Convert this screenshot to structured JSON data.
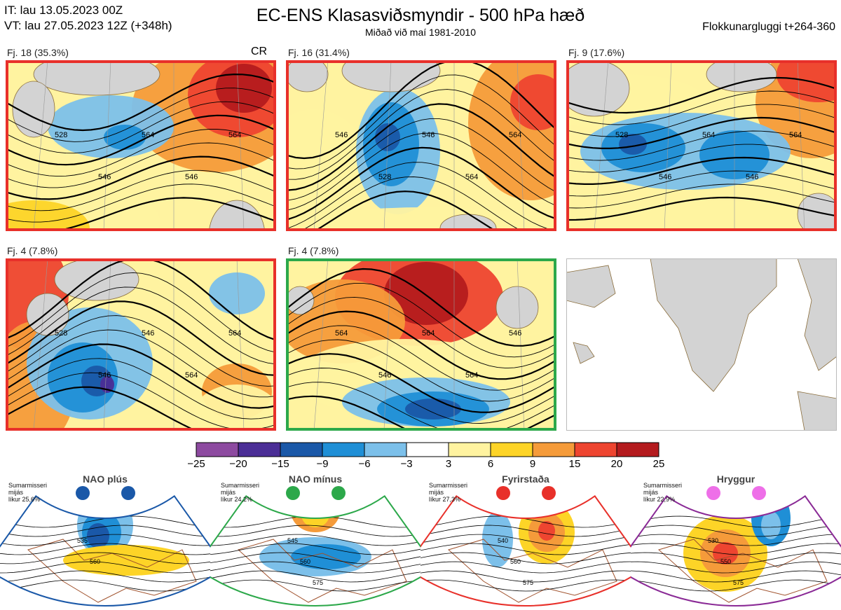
{
  "header": {
    "it_line": "IT: lau 13.05.2023 00Z",
    "vt_line": "VT: lau 27.05.2023 12Z  (+348h)",
    "title": "EC-ENS Klasasviðsmyndir - 500 hPa hæð",
    "subtitle": "Miðað við maí 1981-2010",
    "window": "Flokkunargluggi t+264-360"
  },
  "panels": [
    {
      "label": "Fj. 18 (35.3%)",
      "flag": "CR",
      "border": "#e8302a",
      "contours": [
        "528",
        "546",
        "564",
        "546",
        "564"
      ]
    },
    {
      "label": "Fj. 16 (31.4%)",
      "flag": "",
      "border": "#e8302a",
      "contours": [
        "546",
        "528",
        "546",
        "564",
        "564"
      ]
    },
    {
      "label": "Fj. 9 (17.6%)",
      "flag": "",
      "border": "#e8302a",
      "contours": [
        "528",
        "546",
        "564",
        "546",
        "564"
      ]
    },
    {
      "label": "Fj. 4 (7.8%)",
      "flag": "",
      "border": "#e8302a",
      "contours": [
        "528",
        "546",
        "546",
        "564",
        "564"
      ]
    },
    {
      "label": "Fj. 4 (7.8%)",
      "flag": "",
      "border": "#2ca84a",
      "contours": [
        "564",
        "546",
        "564",
        "564",
        "546"
      ]
    },
    {
      "label": "",
      "flag": "",
      "border": "#bbbbbb",
      "contours": []
    }
  ],
  "chart_data": {
    "type": "heatmap",
    "title": "EC-ENS Klasasviðsmyndir - 500 hPa hæð",
    "colorbar": {
      "ticks": [
        "−25",
        "−20",
        "−15",
        "−9",
        "−6",
        "−3",
        "3",
        "6",
        "9",
        "15",
        "20",
        "25"
      ],
      "colors": [
        "#8d4aa0",
        "#4b2e96",
        "#1a58a8",
        "#1f8fd6",
        "#7cc0ea",
        "#ffffff",
        "#fff3a0",
        "#fdd427",
        "#f59b3a",
        "#ee4530",
        "#b41b1e"
      ]
    }
  },
  "regimes": [
    {
      "name": "NAO plús",
      "info": "Sumarmisseri\nmijás\nlíkur 25,6%",
      "dot": "#1a58a8",
      "border": "#1a58a8",
      "contours": [
        "535",
        "560"
      ]
    },
    {
      "name": "NAO mínus",
      "info": "Sumarmisseri\nmijás\nlíkur 24,2%",
      "dot": "#2ca84a",
      "border": "#2ca84a",
      "contours": [
        "545",
        "560",
        "575"
      ]
    },
    {
      "name": "Fyrirstaða",
      "info": "Sumarmisseri\nmijás\nlíkur 27,3%",
      "dot": "#e8302a",
      "border": "#e8302a",
      "contours": [
        "540",
        "560",
        "575"
      ]
    },
    {
      "name": "Hryggur",
      "info": "Sumarmisseri\nmijás\nlíkur 22,9%",
      "dot": "#ee6fe8",
      "border": "#8a2a96",
      "contours": [
        "530",
        "550",
        "575"
      ]
    }
  ]
}
